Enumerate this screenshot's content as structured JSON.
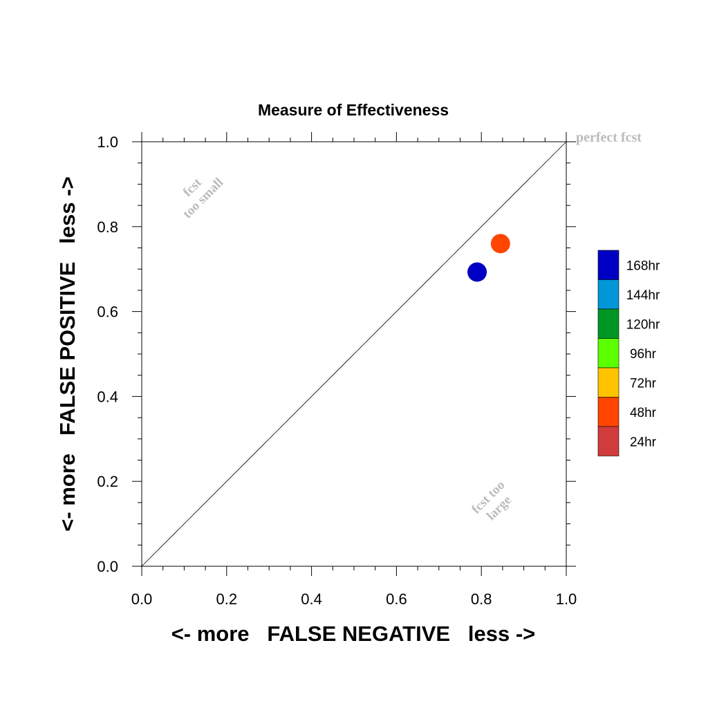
{
  "chart_data": {
    "type": "scatter",
    "title": "Measure of Effectiveness",
    "xlabel": "<- more   FALSE NEGATIVE   less ->",
    "ylabel": "<- more   FALSE POSITIVE   less ->",
    "xlim": [
      0,
      1
    ],
    "ylim": [
      0,
      1
    ],
    "x_ticks": [
      "0.0",
      "0.2",
      "0.4",
      "0.6",
      "0.8",
      "1.0"
    ],
    "y_ticks": [
      "0.0",
      "0.2",
      "0.4",
      "0.6",
      "0.8",
      "1.0"
    ],
    "grid": false,
    "reference_line": {
      "from": [
        0,
        0
      ],
      "to": [
        1,
        1
      ],
      "color": "#000000"
    },
    "annotations": {
      "perfect": "perfect fcst",
      "too_small_line1": "fcst",
      "too_small_line2": "too small",
      "too_large_line1": "fcst too",
      "too_large_line2": "large",
      "color": "#bbbbbb"
    },
    "points": [
      {
        "series": "48hr",
        "x": 0.845,
        "y": 0.76,
        "color": "#ff4500"
      },
      {
        "series": "168hr",
        "x": 0.79,
        "y": 0.693,
        "color": "#0000c4"
      }
    ],
    "legend": {
      "position": "right",
      "entries": [
        {
          "label": "168hr",
          "color": "#0000c4"
        },
        {
          "label": "144hr",
          "color": "#0096d8"
        },
        {
          "label": "120hr",
          "color": "#009623"
        },
        {
          "label": "96hr",
          "color": "#5aff00"
        },
        {
          "label": "72hr",
          "color": "#ffc300"
        },
        {
          "label": "48hr",
          "color": "#ff4500"
        },
        {
          "label": "24hr",
          "color": "#d03c3c"
        }
      ]
    }
  }
}
